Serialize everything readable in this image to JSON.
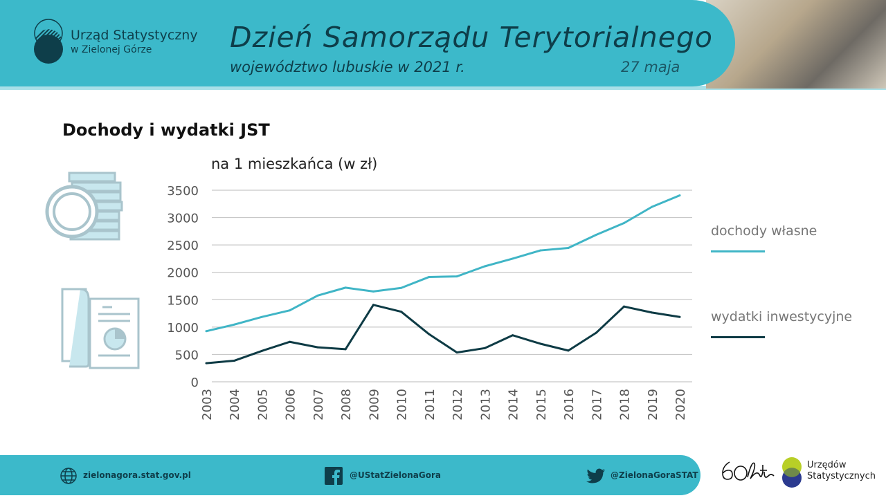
{
  "header": {
    "org_line1": "Urząd Statystyczny",
    "org_line2": "w Zielonej Górze",
    "title": "Dzień Samorządu Terytorialnego",
    "subtitle": "województwo lubuskie w 2021 r.",
    "date": "27 maja"
  },
  "colors": {
    "brand": "#3cb9ca",
    "dark": "#0e3e4a",
    "series1": "#40b5c6",
    "series2": "#0e3b45"
  },
  "chart_data": {
    "type": "line",
    "title": "Dochody i wydatki JST",
    "subtitle": "na 1 mieszkańca (w zł)",
    "x": [
      "2003",
      "2004",
      "2005",
      "2006",
      "2007",
      "2008",
      "2009",
      "2010",
      "2011",
      "2012",
      "2013",
      "2014",
      "2015",
      "2016",
      "2017",
      "2018",
      "2019",
      "2020"
    ],
    "yticks": [
      "0",
      "500",
      "1000",
      "1500",
      "2000",
      "2500",
      "3000",
      "3500"
    ],
    "ylim": [
      0,
      3500
    ],
    "grid": true,
    "legend": "right",
    "series": [
      {
        "name": "dochody własne",
        "color": "#40b5c6",
        "values": [
          925,
          1045,
          1185,
          1305,
          1575,
          1720,
          1650,
          1715,
          1915,
          1925,
          2110,
          2250,
          2400,
          2445,
          2685,
          2900,
          3195,
          3405
        ]
      },
      {
        "name": "wydatki inwestycyjne",
        "color": "#0e3b45",
        "values": [
          340,
          385,
          565,
          730,
          630,
          595,
          1405,
          1280,
          870,
          535,
          615,
          850,
          695,
          570,
          895,
          1375,
          1265,
          1185
        ]
      }
    ]
  },
  "footer": {
    "website": "zielonagora.stat.gov.pl",
    "facebook": "@UStatZielonaGora",
    "twitter": "@ZielonaGoraSTAT",
    "logo_60": "60 lat",
    "logo_us_line1": "Urzędów",
    "logo_us_line2": "Statystycznych"
  },
  "icons": {
    "money": "coins-stack-icon",
    "doc": "document-chart-icon",
    "web": "globe-icon",
    "fb": "facebook-icon",
    "tw": "twitter-icon"
  }
}
